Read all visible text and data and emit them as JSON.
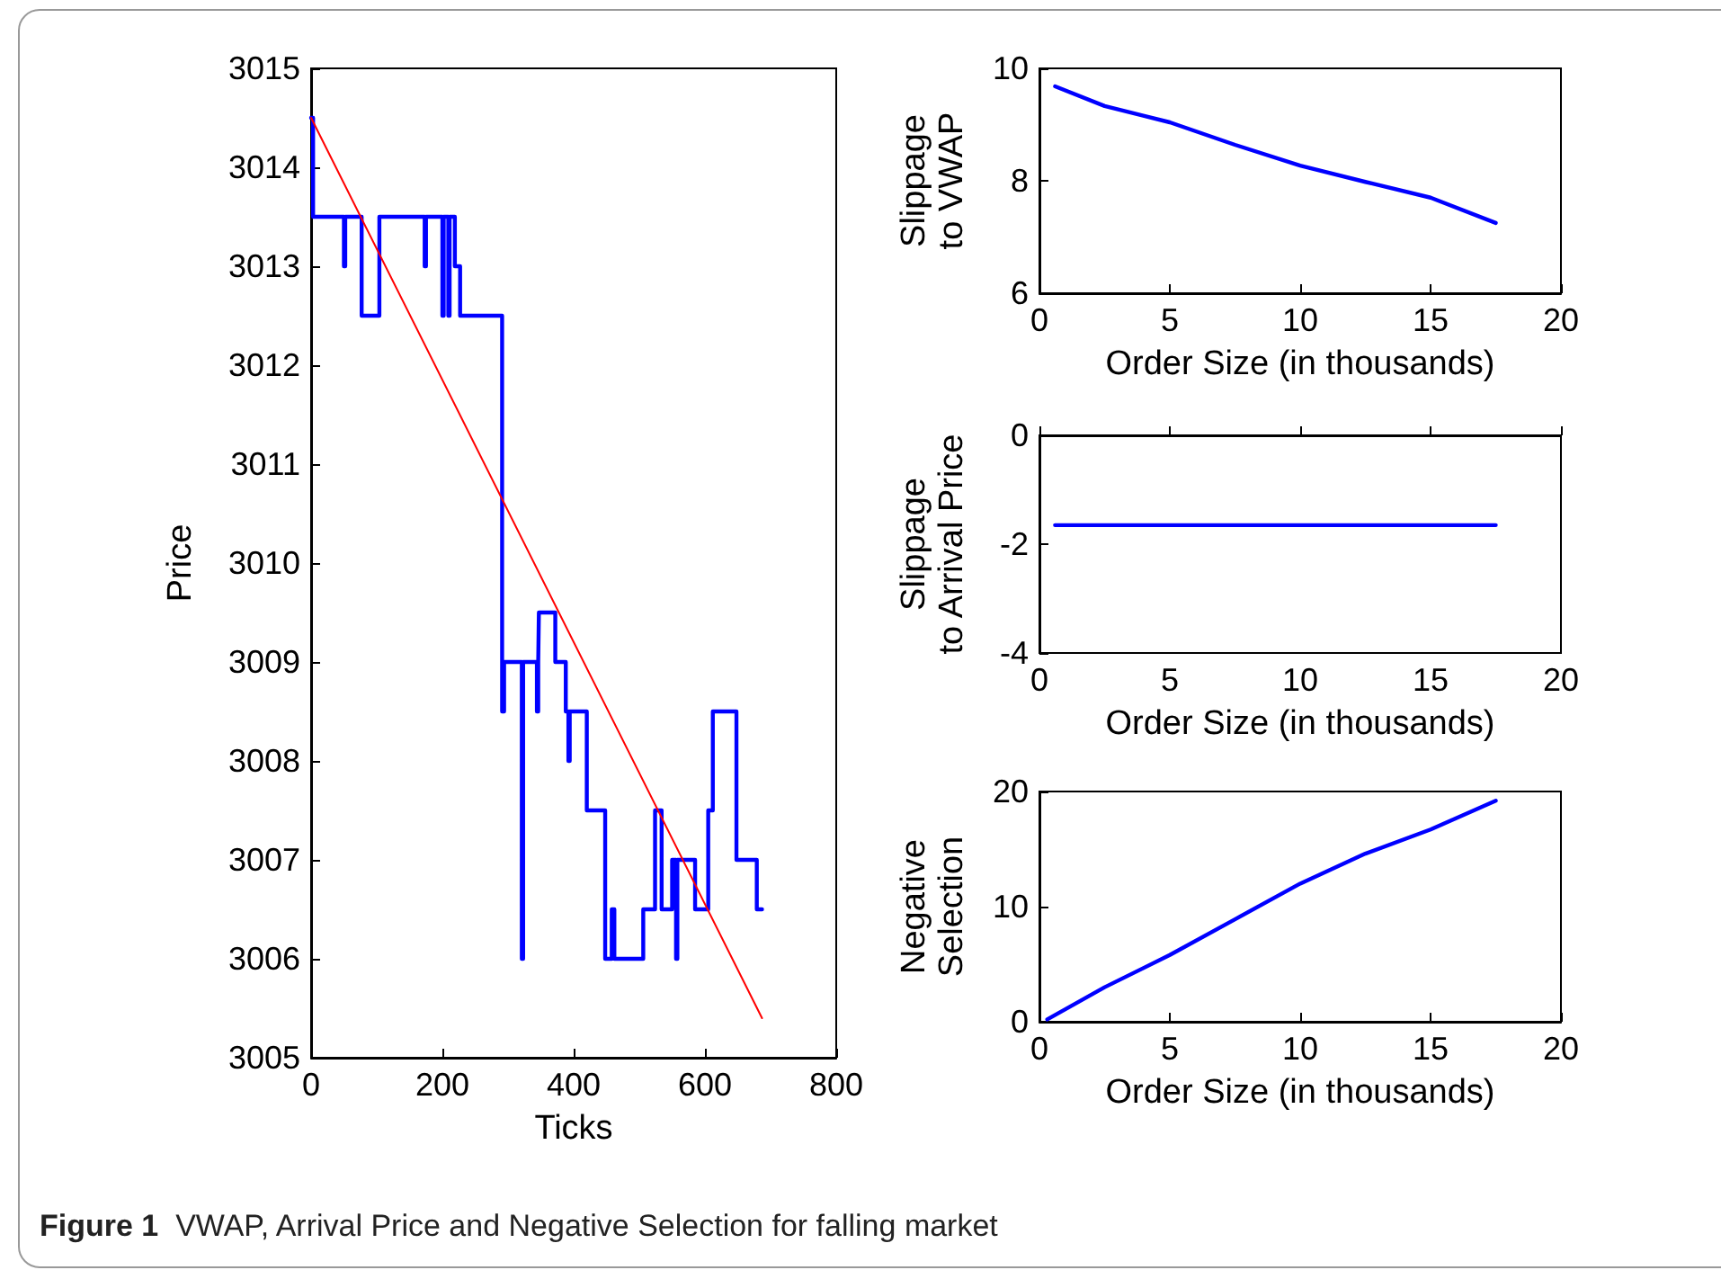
{
  "chart_data": [
    {
      "type": "step",
      "xlabel": "Ticks",
      "ylabel": "Price",
      "xlim": [
        0,
        800
      ],
      "xticks": [
        0,
        200,
        400,
        600,
        800
      ],
      "ylim": [
        3005,
        3015
      ],
      "yticks": [
        3005,
        3006,
        3007,
        3008,
        3009,
        3010,
        3011,
        3012,
        3013,
        3014,
        3015
      ],
      "annotations": [
        "Figure 1 VWAP, Arrival Price and Negative Selection for falling market"
      ],
      "series": [
        {
          "color": "#0000ff",
          "x": [
            0,
            3,
            50,
            52,
            77,
            104,
            173,
            175,
            200,
            202,
            209,
            211,
            219,
            227,
            291,
            294,
            321,
            323,
            344,
            346,
            347,
            372,
            388,
            392,
            394,
            420,
            448,
            458,
            462,
            506,
            524,
            534,
            550,
            556,
            558,
            585,
            605,
            612,
            648,
            679,
            687
          ],
          "values": [
            3014.5,
            3013.5,
            3013,
            3013.5,
            3012.5,
            3013.5,
            3013,
            3013.5,
            3012.5,
            3013.5,
            3012.5,
            3013.5,
            3013,
            3012.5,
            3008.5,
            3009,
            3006,
            3009,
            3008.5,
            3009,
            3009.5,
            3009,
            3008.5,
            3008,
            3008.5,
            3007.5,
            3006,
            3006.5,
            3006,
            3006.5,
            3007.5,
            3006.5,
            3007,
            3006,
            3007,
            3006.5,
            3007.5,
            3008.5,
            3007,
            3006.5,
            3006.5
          ]
        },
        {
          "type": "line",
          "color": "#ff0000",
          "x": [
            0,
            687
          ],
          "values": [
            3014.5,
            3005.4
          ]
        }
      ]
    },
    {
      "type": "line",
      "xlabel": "Order Size (in thousands)",
      "ylabel": "Slippage\nto VWAP",
      "xlim": [
        0,
        20
      ],
      "xticks": [
        0,
        5,
        10,
        15,
        20
      ],
      "ylim": [
        6,
        10
      ],
      "yticks": [
        6,
        8,
        10
      ],
      "series": [
        {
          "color": "#0000ff",
          "x": [
            0.6,
            2.5,
            5,
            7.5,
            10,
            12.5,
            15,
            17.5
          ],
          "values": [
            9.68,
            9.33,
            9.04,
            8.64,
            8.27,
            7.98,
            7.7,
            7.25
          ]
        }
      ]
    },
    {
      "type": "line",
      "xlabel": "Order Size (in thousands)",
      "ylabel": "Slippage\nto Arrival Price",
      "xlim": [
        0,
        20
      ],
      "xticks": [
        0,
        5,
        10,
        15,
        20
      ],
      "ylim": [
        -4,
        0
      ],
      "yticks": [
        -4,
        -2,
        0
      ],
      "series": [
        {
          "color": "#0000ff",
          "x": [
            0.6,
            17.5
          ],
          "values": [
            -1.65,
            -1.65
          ]
        }
      ]
    },
    {
      "type": "line",
      "xlabel": "Order Size (in thousands)",
      "ylabel": "Negative\nSelection",
      "xlim": [
        0,
        20
      ],
      "xticks": [
        0,
        5,
        10,
        15,
        20
      ],
      "ylim": [
        0,
        20
      ],
      "yticks": [
        0,
        10,
        20
      ],
      "series": [
        {
          "color": "#0000ff",
          "x": [
            0.3,
            2.5,
            5,
            7.5,
            10,
            12.5,
            15,
            17.5
          ],
          "values": [
            0.2,
            3,
            5.8,
            8.9,
            12,
            14.6,
            16.7,
            19.2
          ]
        }
      ]
    }
  ]
}
